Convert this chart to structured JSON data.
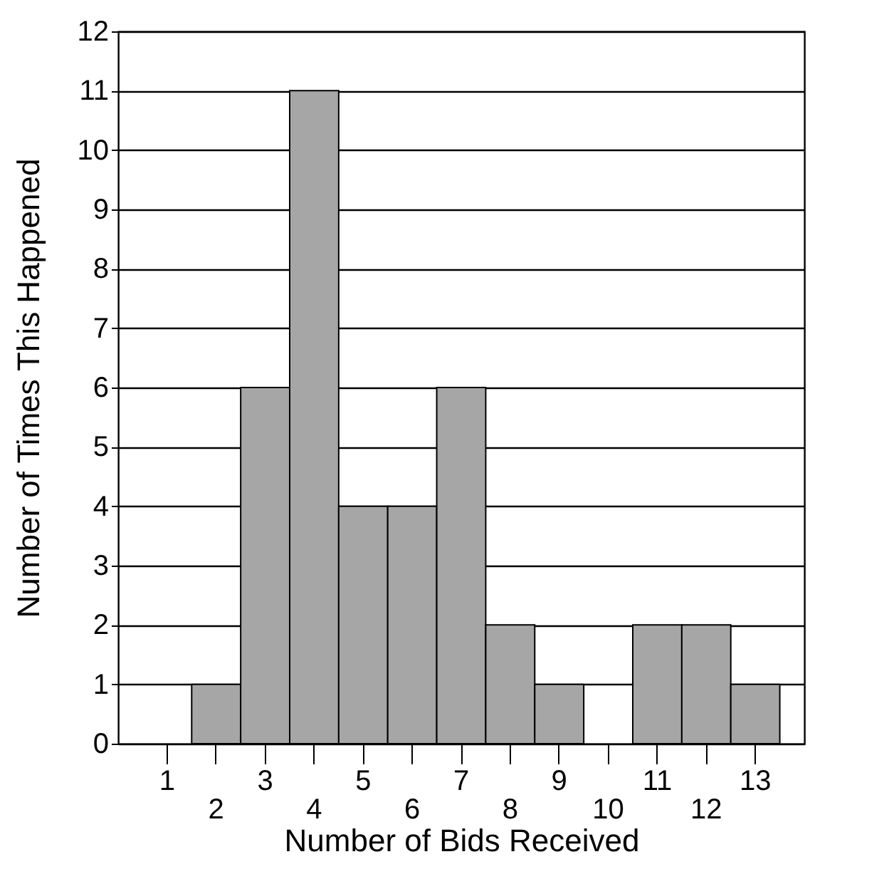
{
  "chart_data": {
    "type": "bar",
    "xlabel": "Number of Bids Received",
    "ylabel": "Number of Times This Happened",
    "categories": [
      "1",
      "2",
      "3",
      "4",
      "5",
      "6",
      "7",
      "8",
      "9",
      "10",
      "11",
      "12",
      "13"
    ],
    "values": [
      0,
      1,
      6,
      11,
      4,
      4,
      6,
      2,
      1,
      0,
      2,
      2,
      1
    ],
    "color": "#a6a6a6",
    "ylim": [
      0,
      12
    ],
    "yticks": [
      0,
      1,
      2,
      3,
      4,
      5,
      6,
      7,
      8,
      9,
      10,
      11,
      12
    ],
    "grid": "y"
  }
}
